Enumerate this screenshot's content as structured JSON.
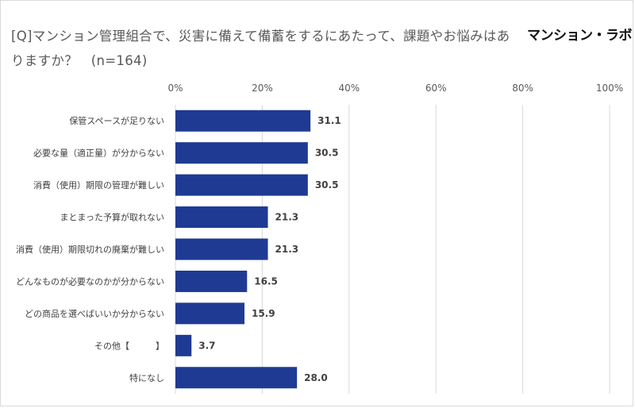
{
  "header": {
    "title": "[Q]マンション管理組合で、災害に備えて備蓄をするにあたって、課題やお悩みはありますか？　(n=164)",
    "logo_text": "マンション・ラボ"
  },
  "chart_data": {
    "type": "bar",
    "orientation": "horizontal",
    "categories": [
      "保管スペースが足りない",
      "必要な量（適正量）が分からない",
      "消費（使用）期限の管理が難しい",
      "まとまった予算が取れない",
      "消費（使用）期限切れの廃棄が難しい",
      "どんなものが必要なのかが分からない",
      "どの商品を選べばいいか分からない",
      "その他【　　　】",
      "特になし"
    ],
    "values": [
      31.1,
      30.5,
      30.5,
      21.3,
      21.3,
      16.5,
      15.9,
      3.7,
      28.0
    ],
    "value_labels": [
      "31.1",
      "30.5",
      "30.5",
      "21.3",
      "21.3",
      "16.5",
      "15.9",
      "3.7",
      "28.0"
    ],
    "xlim": [
      0,
      100
    ],
    "xticks": [
      "0%",
      "20%",
      "40%",
      "60%",
      "80%",
      "100%"
    ],
    "grid": true,
    "colors": {
      "bar": "#1f3a93",
      "grid": "#d9d9d9",
      "title": "#595959"
    }
  }
}
